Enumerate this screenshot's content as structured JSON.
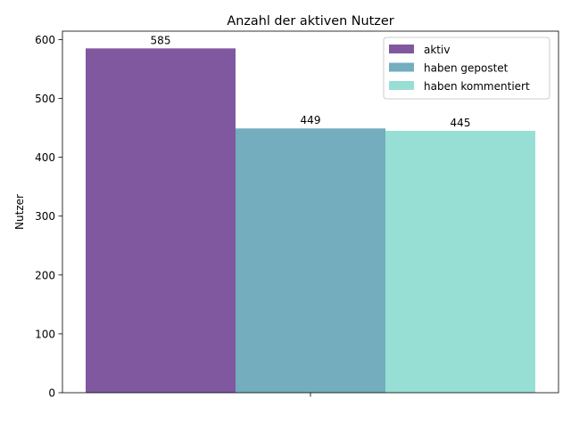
{
  "chart_data": {
    "type": "bar",
    "title": "Anzahl der aktiven Nutzer",
    "xlabel": "",
    "ylabel": "Nutzer",
    "ylim": [
      0,
      614.25
    ],
    "yticks": [
      0,
      100,
      200,
      300,
      400,
      500,
      600
    ],
    "categories": [
      ""
    ],
    "grid": false,
    "legend_placement": "top-right",
    "series": [
      {
        "name": "aktiv",
        "values": [
          585
        ],
        "color": "#8058a0",
        "label": "585"
      },
      {
        "name": "haben gepostet",
        "values": [
          449
        ],
        "color": "#73adbe",
        "label": "449"
      },
      {
        "name": "haben kommentiert",
        "values": [
          445
        ],
        "color": "#97dfd4",
        "label": "445"
      }
    ]
  }
}
